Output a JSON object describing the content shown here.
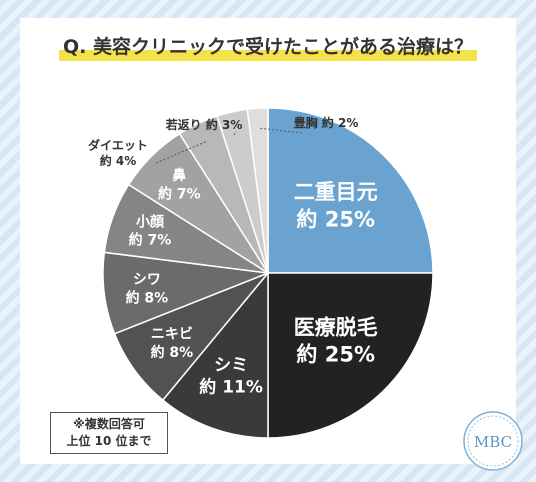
{
  "title": "Q. 美容クリニックで受けたことがある治療は？",
  "note": {
    "line1": "※複数回答可",
    "line2": "上位 10 位まで"
  },
  "logo_text": "MBC",
  "colors": {
    "accent": "#f3e24a",
    "slice1": "#6aa3cf"
  },
  "chart_data": {
    "type": "pie",
    "title": "Q. 美容クリニックで受けたことがある治療は？",
    "unit": "%",
    "slices": [
      {
        "label": "二重目元",
        "value_label": "約 25%",
        "value": 25,
        "color": "#6aa3cf"
      },
      {
        "label": "医療脱毛",
        "value_label": "約 25%",
        "value": 25,
        "color": "#222222"
      },
      {
        "label": "シミ",
        "value_label": "約 11%",
        "value": 11,
        "color": "#3a3a3a"
      },
      {
        "label": "ニキビ",
        "value_label": "約 8%",
        "value": 8,
        "color": "#525252"
      },
      {
        "label": "シワ",
        "value_label": "約 8%",
        "value": 8,
        "color": "#6b6b6b"
      },
      {
        "label": "小顔",
        "value_label": "約 7%",
        "value": 7,
        "color": "#858585"
      },
      {
        "label": "鼻",
        "value_label": "約 7%",
        "value": 7,
        "color": "#a2a2a2"
      },
      {
        "label": "ダイエット",
        "value_label": "約 4%",
        "value": 4,
        "color": "#b8b8b8"
      },
      {
        "label": "若返り",
        "value_label": "約 3%",
        "value": 3,
        "color": "#cccccc"
      },
      {
        "label": "豊胸",
        "value_label": "約 2%",
        "value": 2,
        "color": "#dedede"
      }
    ]
  }
}
